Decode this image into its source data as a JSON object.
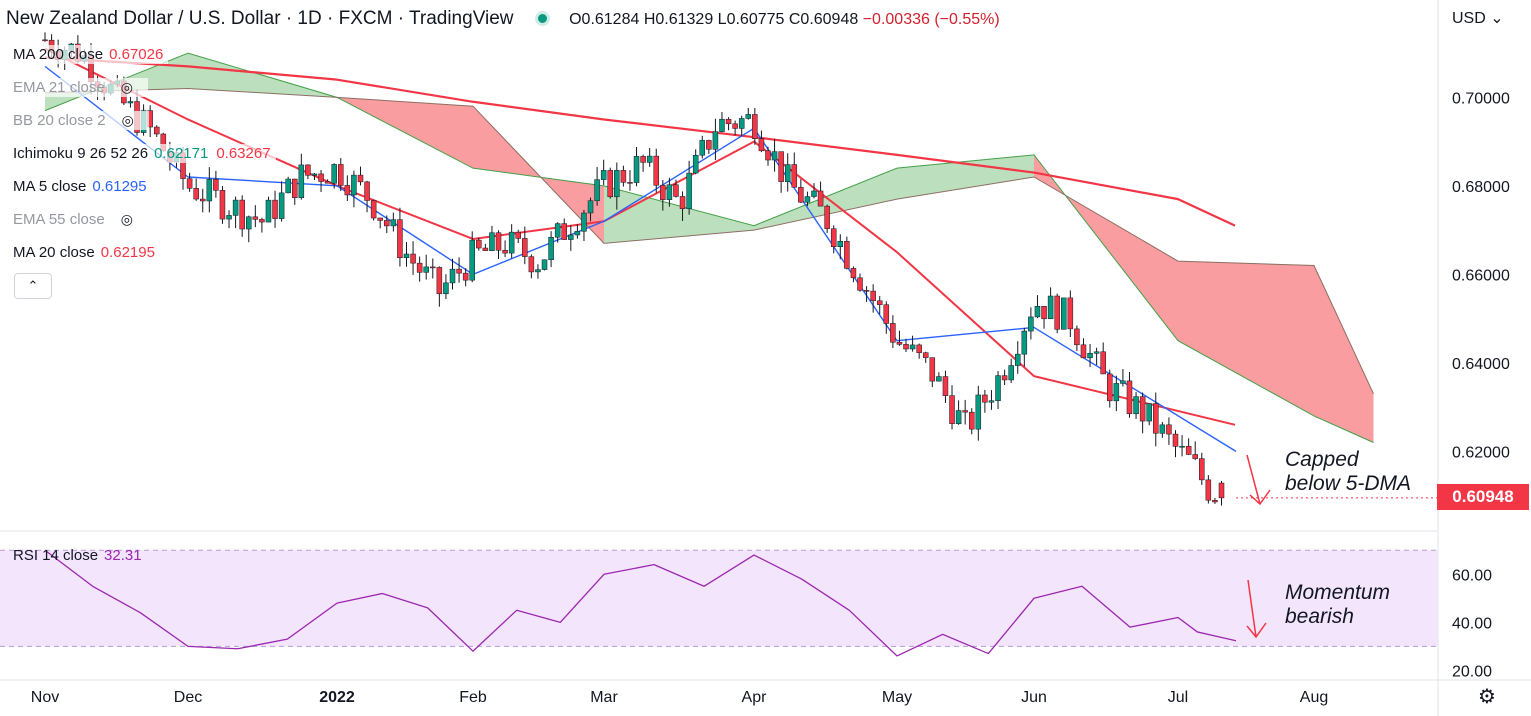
{
  "header": {
    "title": "New Zealand Dollar / U.S. Dollar · 1D · FXCM · TradingView",
    "open": "O0.61284",
    "high": "H0.61329",
    "low": "L0.60775",
    "close": "C0.60948",
    "change": "−0.00336 (−0.55%)"
  },
  "indicators": [
    {
      "label": "MA 200 close",
      "value": "0.67026",
      "color": "#f23645",
      "hidden": false
    },
    {
      "label": "EMA 21 close",
      "value": "",
      "hidden": true
    },
    {
      "label": "BB 20 close 2",
      "value": "",
      "hidden": true
    },
    {
      "label": "Ichimoku 9 26 52 26",
      "value": "0.62171",
      "value2": "0.63267",
      "color": "#089981",
      "color2": "#f23645",
      "hidden": false
    },
    {
      "label": "MA 5 close",
      "value": "0.61295",
      "color": "#2962ff",
      "hidden": false
    },
    {
      "label": "EMA 55 close",
      "value": "",
      "hidden": true
    },
    {
      "label": "MA 20 close",
      "value": "0.62195",
      "color": "#f23645",
      "hidden": false
    }
  ],
  "rsi_legend": {
    "label": "RSI 14 close",
    "value": "32.31",
    "color": "#9c27b0"
  },
  "currency": "USD",
  "last_price": "0.60948",
  "annotations": {
    "price": "Capped\nbelow 5-DMA",
    "rsi": "Momentum\nbearish"
  },
  "colors": {
    "up": "#089981",
    "down": "#f23645",
    "ma": "#f23645",
    "ma5": "#2962ff",
    "cloud_bull": "#a5d6a7",
    "cloud_bear": "#f77c80",
    "rsi": "#9c27b0",
    "rsi_band": "#f3e5fc"
  },
  "chart_data": [
    {
      "type": "candlestick",
      "title": "New Zealand Dollar / U.S. Dollar · 1D · FXCM · TradingView",
      "x_axis": {
        "ticks": [
          "Nov",
          "Dec",
          "2022",
          "Feb",
          "Mar",
          "Apr",
          "May",
          "Jun",
          "Jul",
          "Aug"
        ]
      },
      "y_axis": {
        "ticks": [
          0.7,
          0.68,
          0.66,
          0.64,
          0.62
        ],
        "range": [
          0.602,
          0.722
        ]
      },
      "ohlc_last": {
        "open": 0.61284,
        "high": 0.61329,
        "low": 0.60775,
        "close": 0.60948
      },
      "series": [
        {
          "name": "MA 200 close",
          "last": 0.67026,
          "x": [
            "Nov",
            "Dec",
            "2022",
            "Feb",
            "Mar",
            "Apr",
            "May",
            "Jun",
            "Jul",
            "Aug"
          ],
          "values": [
            0.709,
            0.707,
            0.704,
            0.699,
            0.695,
            0.691,
            0.687,
            0.683,
            0.677,
            0.671
          ]
        },
        {
          "name": "MA 20 close",
          "last": 0.62195,
          "x": [
            "Nov",
            "Dec",
            "2022",
            "Feb",
            "Mar",
            "Apr",
            "May",
            "Jun",
            "Jul"
          ],
          "values": [
            0.711,
            0.695,
            0.68,
            0.668,
            0.672,
            0.69,
            0.665,
            0.637,
            0.626
          ]
        },
        {
          "name": "MA 5 close",
          "last": 0.61295,
          "x": [
            "Nov",
            "Dec",
            "2022",
            "Feb",
            "Mar",
            "Apr",
            "May",
            "Jun",
            "Jul"
          ],
          "values": [
            0.707,
            0.682,
            0.68,
            0.66,
            0.672,
            0.693,
            0.645,
            0.648,
            0.62
          ]
        }
      ],
      "close_path": [
        {
          "x": "Nov",
          "close": 0.713
        },
        {
          "x": "Nov",
          "close": 0.71
        },
        {
          "x": "Nov",
          "close": 0.7
        },
        {
          "x": "Nov",
          "close": 0.692
        },
        {
          "x": "Dec",
          "close": 0.68
        },
        {
          "x": "Dec",
          "close": 0.676
        },
        {
          "x": "Dec",
          "close": 0.672
        },
        {
          "x": "Dec",
          "close": 0.682
        },
        {
          "x": "2022",
          "close": 0.684
        },
        {
          "x": "2022",
          "close": 0.677
        },
        {
          "x": "2022",
          "close": 0.665
        },
        {
          "x": "2022",
          "close": 0.656
        },
        {
          "x": "Feb",
          "close": 0.664
        },
        {
          "x": "Feb",
          "close": 0.667
        },
        {
          "x": "Feb",
          "close": 0.663
        },
        {
          "x": "Feb",
          "close": 0.672
        },
        {
          "x": "Mar",
          "close": 0.68
        },
        {
          "x": "Mar",
          "close": 0.685
        },
        {
          "x": "Mar",
          "close": 0.676
        },
        {
          "x": "Mar",
          "close": 0.694
        },
        {
          "x": "Apr",
          "close": 0.695
        },
        {
          "x": "Apr",
          "close": 0.68
        },
        {
          "x": "Apr",
          "close": 0.673
        },
        {
          "x": "Apr",
          "close": 0.659
        },
        {
          "x": "May",
          "close": 0.645
        },
        {
          "x": "May",
          "close": 0.638
        },
        {
          "x": "May",
          "close": 0.625
        },
        {
          "x": "May",
          "close": 0.637
        },
        {
          "x": "Jun",
          "close": 0.654
        },
        {
          "x": "Jun",
          "close": 0.65
        },
        {
          "x": "Jun",
          "close": 0.635
        },
        {
          "x": "Jun",
          "close": 0.629
        },
        {
          "x": "Jul",
          "close": 0.62
        },
        {
          "x": "Jul",
          "close": 0.617
        },
        {
          "x": "Jul",
          "close": 0.612
        },
        {
          "x": "Jul",
          "close": 0.60948
        }
      ],
      "ichimoku_cloud": [
        {
          "x": "Nov",
          "span_a": 0.697,
          "span_b": 0.701
        },
        {
          "x": "Dec",
          "span_a": 0.71,
          "span_b": 0.702
        },
        {
          "x": "2022",
          "span_a": 0.7,
          "span_b": 0.7
        },
        {
          "x": "Feb",
          "span_a": 0.684,
          "span_b": 0.698
        },
        {
          "x": "Mar",
          "span_a": 0.68,
          "span_b": 0.667
        },
        {
          "x": "Apr",
          "span_a": 0.671,
          "span_b": 0.67
        },
        {
          "x": "May",
          "span_a": 0.684,
          "span_b": 0.677
        },
        {
          "x": "Jun",
          "span_a": 0.687,
          "span_b": 0.682
        },
        {
          "x": "Jul",
          "span_a": 0.645,
          "span_b": 0.663
        },
        {
          "x": "Aug",
          "span_a": 0.628,
          "span_b": 0.662
        },
        {
          "x": "Aug",
          "span_a": 0.622,
          "span_b": 0.633
        }
      ]
    },
    {
      "type": "line",
      "title": "RSI 14 close",
      "y_axis": {
        "ticks": [
          60.0,
          40.0,
          20.0
        ],
        "range": [
          16,
          78
        ]
      },
      "band": [
        30,
        70
      ],
      "last": 32.31,
      "series": [
        {
          "name": "RSI 14 close",
          "x": [
            "Nov",
            "Nov",
            "Nov",
            "Dec",
            "Dec",
            "Dec",
            "2022",
            "2022",
            "2022",
            "Feb",
            "Feb",
            "Feb",
            "Mar",
            "Mar",
            "Mar",
            "Apr",
            "Apr",
            "Apr",
            "May",
            "May",
            "May",
            "Jun",
            "Jun",
            "Jun",
            "Jul",
            "Jul",
            "Jul"
          ],
          "values": [
            70,
            55,
            44,
            30,
            29,
            33,
            48,
            52,
            46,
            28,
            45,
            40,
            60,
            64,
            55,
            68,
            58,
            45,
            26,
            35,
            27,
            50,
            55,
            38,
            42,
            36,
            32.31
          ]
        }
      ]
    }
  ]
}
